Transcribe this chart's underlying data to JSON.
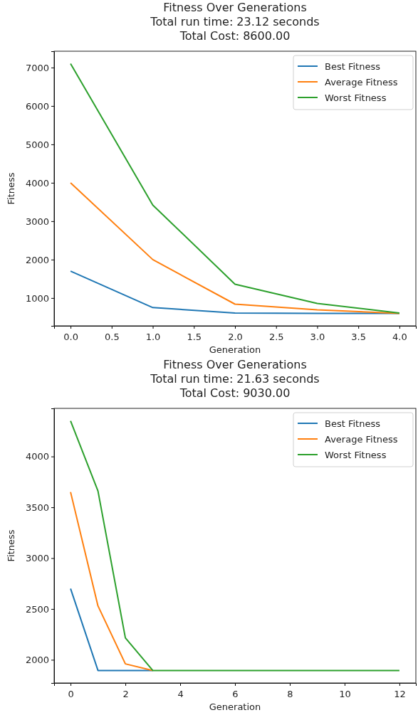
{
  "chart_data": [
    {
      "type": "line",
      "title": "Fitness Over Generations\nTotal run time: 23.12 seconds\nTotal Cost: 8600.00",
      "xlabel": "Generation",
      "ylabel": "Fitness",
      "x": [
        0,
        1,
        2,
        3,
        4
      ],
      "series": [
        {
          "name": "Best Fitness",
          "color": "#1f77b4",
          "values": [
            1700,
            750,
            610,
            600,
            600
          ]
        },
        {
          "name": "Average Fitness",
          "color": "#ff7f0e",
          "values": [
            4000,
            2000,
            840,
            690,
            600
          ]
        },
        {
          "name": "Worst Fitness",
          "color": "#2ca02c",
          "values": [
            7100,
            3420,
            1360,
            860,
            610
          ]
        }
      ],
      "xlim": [
        -0.2,
        4.2
      ],
      "xticks": [
        {
          "value": 0,
          "label": "0.0"
        },
        {
          "value": 0.5,
          "label": "0.5"
        },
        {
          "value": 1,
          "label": "1.0"
        },
        {
          "value": 1.5,
          "label": "1.5"
        },
        {
          "value": 2,
          "label": "2.0"
        },
        {
          "value": 2.5,
          "label": "2.5"
        },
        {
          "value": 3,
          "label": "3.0"
        },
        {
          "value": 3.5,
          "label": "3.5"
        },
        {
          "value": 4,
          "label": "4.0"
        }
      ],
      "ylim": [
        275,
        7425
      ],
      "yticks": [
        1000,
        2000,
        3000,
        4000,
        5000,
        6000,
        7000
      ],
      "legend": "top right",
      "grid": false,
      "marker": "none",
      "line_style": "solid"
    },
    {
      "type": "line",
      "title": "Fitness Over Generations\nTotal run time: 21.63 seconds\nTotal Cost: 9030.00",
      "xlabel": "Generation",
      "ylabel": "Fitness",
      "x": [
        0,
        1,
        2,
        3,
        4,
        5,
        6,
        7,
        8,
        9,
        10,
        11,
        12
      ],
      "series": [
        {
          "name": "Best Fitness",
          "color": "#1f77b4",
          "values": [
            2700,
            1895,
            1895,
            1895,
            null,
            null,
            null,
            null,
            null,
            null,
            null,
            null,
            null
          ]
        },
        {
          "name": "Average Fitness",
          "color": "#ff7f0e",
          "values": [
            3650,
            2530,
            1960,
            1895,
            null,
            null,
            null,
            null,
            null,
            null,
            null,
            null,
            null
          ]
        },
        {
          "name": "Worst Fitness",
          "color": "#2ca02c",
          "values": [
            4350,
            3660,
            2215,
            1895,
            1895,
            1895,
            1895,
            1895,
            1895,
            1895,
            1895,
            1895,
            1895
          ]
        }
      ],
      "xlim": [
        -0.6,
        12.6
      ],
      "xticks": [
        0,
        2,
        4,
        6,
        8,
        10,
        12
      ],
      "ylim": [
        1772,
        4473
      ],
      "yticks": [
        2000,
        2500,
        3000,
        3500,
        4000
      ],
      "legend": "top right",
      "grid": false,
      "marker": "none",
      "line_style": "solid"
    }
  ]
}
